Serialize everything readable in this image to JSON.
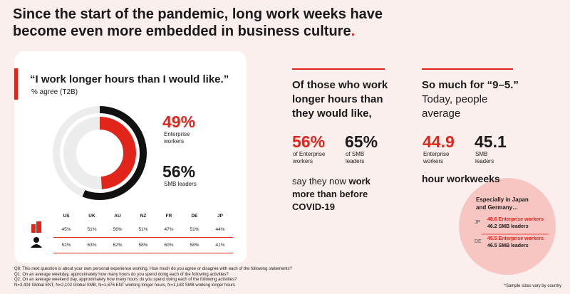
{
  "title": "Since the start of the pandemic, long work weeks have become even more embedded in business culture",
  "title_end": ".",
  "left": {
    "quote": "“I work longer hours than I would like.”",
    "subtitle": "% agree (T2B)",
    "stats": [
      {
        "value": 49,
        "label": "49%",
        "name": "Enterprise workers"
      },
      {
        "value": 56,
        "label": "56%",
        "name": "SMB leaders"
      }
    ],
    "table": {
      "columns": [
        "US",
        "UK",
        "AU",
        "NZ",
        "FR",
        "DE",
        "JP"
      ],
      "rows": [
        [
          "45%",
          "51%",
          "56%",
          "51%",
          "47%",
          "51%",
          "44%"
        ],
        [
          "52%",
          "63%",
          "62%",
          "58%",
          "60%",
          "58%",
          "41%"
        ]
      ]
    }
  },
  "middle": {
    "heading": "Of those who work longer hours than they would like,",
    "stats": [
      {
        "label": "56%",
        "name": "of Enterprise workers"
      },
      {
        "label": "65%",
        "name": "of SMB leaders"
      }
    ],
    "lead": "say they now ",
    "emphasis": "work more than before COVID-19"
  },
  "right": {
    "heading": "So much for “9–5.”",
    "text": "Today, people average",
    "stats": [
      {
        "label": "44.9",
        "name": "Enterprise workers"
      },
      {
        "label": "45.1",
        "name": "SMB leaders"
      }
    ],
    "unit": "hour workweeks",
    "callout": {
      "heading": "Especially in Japan and Germany…",
      "rows": [
        {
          "country": "JP",
          "ent": "48.6 Enterprise workers",
          "smb": "46.2 SMB leaders"
        },
        {
          "country": "DE",
          "ent": "45.5 Enterprise workers",
          "smb": "46.5 SMB leaders"
        }
      ]
    }
  },
  "footnotes": [
    "Q8: This next question is about your own personal experience working. How much do you agree or disagree with each of the following statements?",
    "Q1. On an average weekday, approximately how many hours do you spend doing each of the following activities?",
    "Q2. On an average weekend day, approximately how many hours do you spend doing each of the following activities?",
    "N=3,404 Global ENT, N=2,102 Global SMB, N=1,676 ENT working longer hours, N=1,183 SMB working longer hours"
  ],
  "sample_note": "*Sample sizes vary by country"
}
